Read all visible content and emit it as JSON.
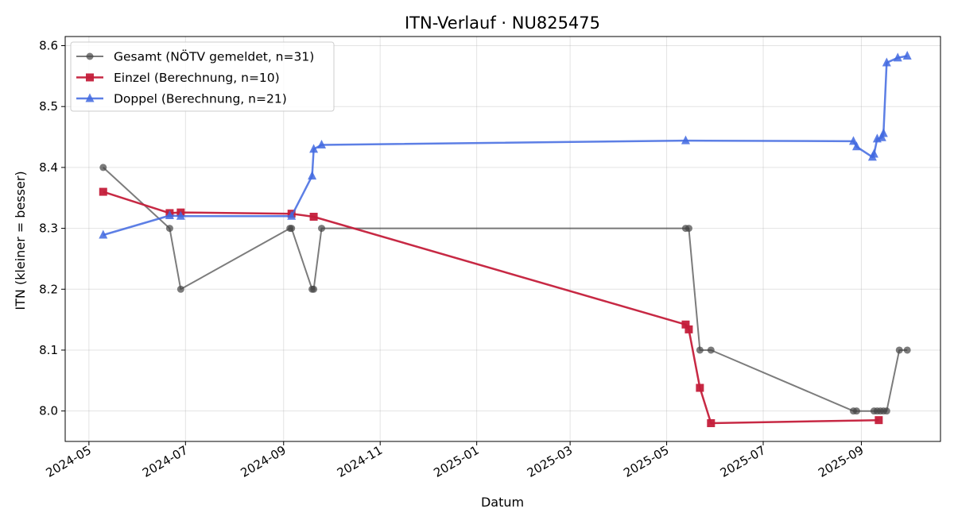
{
  "chart_data": {
    "type": "line",
    "title": "ITN-Verlauf · NU825475",
    "xlabel": "Datum",
    "ylabel": "ITN  (kleiner = besser)",
    "x_tick_labels": [
      "2024-05",
      "2024-07",
      "2024-09",
      "2024-11",
      "2025-01",
      "2025-03",
      "2025-05",
      "2025-07",
      "2025-09"
    ],
    "x_tick_dates": [
      "2024-05-01",
      "2024-07-01",
      "2024-09-01",
      "2024-11-01",
      "2025-01-01",
      "2025-03-01",
      "2025-05-01",
      "2025-07-01",
      "2025-09-01"
    ],
    "x_range": [
      "2024-04-16",
      "2025-10-21"
    ],
    "y_ticks": [
      "8.0",
      "8.1",
      "8.2",
      "8.3",
      "8.4",
      "8.5",
      "8.6"
    ],
    "ylim": [
      7.95,
      8.615
    ],
    "grid": true,
    "legend_position": "top-left",
    "series": [
      {
        "name": "Gesamt (NÖTV gemeldet, n=31)",
        "color": "#444444",
        "marker": "circle",
        "points": [
          {
            "x": "2024-05-10",
            "y": 8.4
          },
          {
            "x": "2024-06-21",
            "y": 8.3
          },
          {
            "x": "2024-06-28",
            "y": 8.2
          },
          {
            "x": "2024-09-05",
            "y": 8.3
          },
          {
            "x": "2024-09-06",
            "y": 8.3
          },
          {
            "x": "2024-09-19",
            "y": 8.2
          },
          {
            "x": "2024-09-20",
            "y": 8.2
          },
          {
            "x": "2024-09-25",
            "y": 8.3
          },
          {
            "x": "2025-05-13",
            "y": 8.3
          },
          {
            "x": "2025-05-15",
            "y": 8.3
          },
          {
            "x": "2025-05-22",
            "y": 8.1
          },
          {
            "x": "2025-05-29",
            "y": 8.1
          },
          {
            "x": "2025-08-27",
            "y": 8.0
          },
          {
            "x": "2025-08-29",
            "y": 8.0
          },
          {
            "x": "2025-09-09",
            "y": 8.0
          },
          {
            "x": "2025-09-11",
            "y": 8.0
          },
          {
            "x": "2025-09-13",
            "y": 8.0
          },
          {
            "x": "2025-09-15",
            "y": 8.0
          },
          {
            "x": "2025-09-17",
            "y": 8.0
          },
          {
            "x": "2025-09-25",
            "y": 8.1
          },
          {
            "x": "2025-09-30",
            "y": 8.1
          }
        ]
      },
      {
        "name": "Einzel (Berechnung, n=10)",
        "color": "#c41e3a",
        "marker": "square",
        "points": [
          {
            "x": "2024-05-10",
            "y": 8.36
          },
          {
            "x": "2024-06-21",
            "y": 8.325
          },
          {
            "x": "2024-06-28",
            "y": 8.326
          },
          {
            "x": "2024-09-06",
            "y": 8.324
          },
          {
            "x": "2024-09-20",
            "y": 8.319
          },
          {
            "x": "2025-05-13",
            "y": 8.142
          },
          {
            "x": "2025-05-15",
            "y": 8.134
          },
          {
            "x": "2025-05-22",
            "y": 8.038
          },
          {
            "x": "2025-05-29",
            "y": 7.98
          },
          {
            "x": "2025-09-12",
            "y": 7.985
          }
        ]
      },
      {
        "name": "Doppel (Berechnung, n=21)",
        "color": "#4169e1",
        "marker": "triangle",
        "points": [
          {
            "x": "2024-05-10",
            "y": 8.289
          },
          {
            "x": "2024-06-21",
            "y": 8.321
          },
          {
            "x": "2024-06-28",
            "y": 8.32
          },
          {
            "x": "2024-09-06",
            "y": 8.32
          },
          {
            "x": "2024-09-19",
            "y": 8.386
          },
          {
            "x": "2024-09-20",
            "y": 8.43
          },
          {
            "x": "2024-09-25",
            "y": 8.437
          },
          {
            "x": "2025-05-13",
            "y": 8.444
          },
          {
            "x": "2025-08-27",
            "y": 8.443
          },
          {
            "x": "2025-08-29",
            "y": 8.434
          },
          {
            "x": "2025-09-08",
            "y": 8.417
          },
          {
            "x": "2025-09-09",
            "y": 8.422
          },
          {
            "x": "2025-09-11",
            "y": 8.447
          },
          {
            "x": "2025-09-14",
            "y": 8.449
          },
          {
            "x": "2025-09-15",
            "y": 8.456
          },
          {
            "x": "2025-09-17",
            "y": 8.572
          },
          {
            "x": "2025-09-24",
            "y": 8.58
          },
          {
            "x": "2025-09-30",
            "y": 8.583
          }
        ]
      }
    ]
  }
}
